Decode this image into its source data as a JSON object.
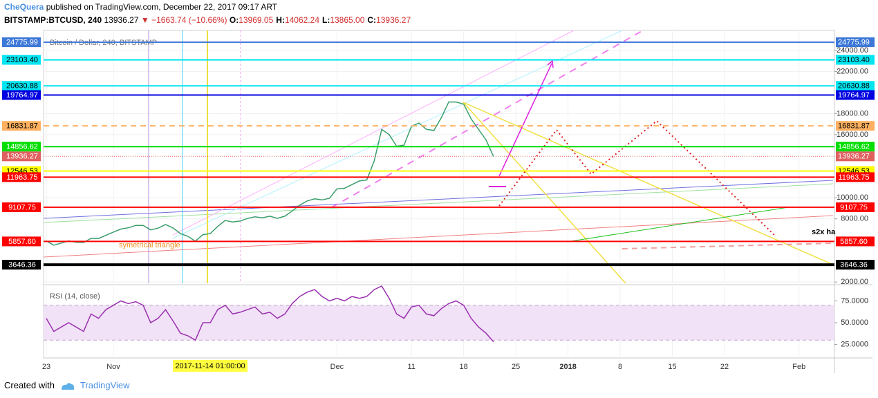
{
  "header": {
    "author": "CheQuera",
    "published": "published on TradingView.com, December 22, 2017 09:17 ART",
    "symbol": "BITSTAMP:BTCUSD, 240",
    "last": "13936.27",
    "change": "▼ −1663.74 (−10.66%)",
    "ohlc": [
      {
        "key": "O:",
        "val": "13969.05"
      },
      {
        "key": "H:",
        "val": "14062.24"
      },
      {
        "key": "L:",
        "val": "13865.00"
      },
      {
        "key": "C:",
        "val": "13936.27"
      }
    ]
  },
  "chart_data": [
    {
      "type": "line",
      "title": "Bitcoin / Dollar, 240, BITSTAMP",
      "color": "#3a9d6a",
      "categories": [
        "23",
        null,
        null,
        null,
        null,
        null,
        null,
        null,
        null,
        "Nov",
        null,
        null,
        null,
        null,
        null,
        null,
        null,
        null,
        null,
        null,
        null,
        null,
        null,
        null,
        null,
        null,
        null,
        null,
        null,
        null,
        null,
        null,
        null,
        null,
        null,
        null,
        null,
        null,
        null,
        "Dec",
        null,
        null,
        null,
        null,
        null,
        null,
        null,
        null,
        null,
        "11",
        null,
        null,
        null,
        null,
        null,
        null,
        "18",
        null,
        null,
        null,
        null,
        null,
        null,
        "25",
        null,
        null,
        null,
        null,
        null,
        null,
        "2018",
        null,
        null,
        null,
        null,
        null,
        null,
        "8",
        null,
        null,
        null,
        null,
        null,
        null,
        "15",
        null,
        null,
        null,
        null,
        null,
        null,
        "22",
        null,
        null,
        null,
        null,
        null,
        null,
        null,
        null,
        null,
        "Feb",
        null,
        null,
        null,
        null,
        null,
        null,
        null,
        null,
        null
      ],
      "values": [
        5900,
        5500,
        5700,
        5900,
        5780,
        5750,
        6150,
        6130,
        6450,
        6740,
        7030,
        7150,
        7380,
        7380,
        6950,
        7120,
        7460,
        7140,
        6600,
        6340,
        5880,
        6500,
        6600,
        7280,
        7850,
        7700,
        7790,
        8040,
        8200,
        8100,
        8250,
        8050,
        8250,
        8750,
        9300,
        9700,
        9900,
        9800,
        9950,
        10850,
        10900,
        11250,
        11600,
        11700,
        13500,
        16500,
        16000,
        14900,
        15000,
        16800,
        17100,
        16500,
        16400,
        17600,
        19100,
        19100,
        18900,
        17500,
        16500,
        15500,
        13936.27,
        null,
        null,
        null,
        null,
        null,
        null,
        null,
        null,
        null,
        null,
        null,
        null,
        null,
        null,
        null,
        null,
        null,
        null,
        null,
        null,
        null,
        null,
        null,
        null,
        null,
        null,
        null,
        null,
        null,
        null,
        null,
        null,
        null,
        null,
        null,
        null,
        null,
        null,
        null,
        null,
        null,
        null,
        null,
        null,
        null,
        null,
        null,
        null,
        null,
        null
      ],
      "ylim": [
        1880,
        25900
      ],
      "yticks": [
        {
          "value": 2000,
          "label": "2000.00"
        },
        {
          "value": 8000,
          "label": "8000.00"
        },
        {
          "value": 10000,
          "label": "10000.00"
        },
        {
          "value": 16000,
          "label": "16000.00"
        },
        {
          "value": 18000,
          "label": "18000.00"
        },
        {
          "value": 22000,
          "label": "22000.00"
        },
        {
          "value": 24000,
          "label": "24000.00"
        }
      ],
      "grid": true,
      "levels": [
        {
          "value": 24775.99,
          "color": "#3d78d8"
        },
        {
          "value": 23103.4,
          "label": "23103.40",
          "color": "#00e5f0"
        },
        {
          "value": 20630.88,
          "color": "#00e5f0"
        },
        {
          "value": 19764.97,
          "color": "#0000e0"
        },
        {
          "value": 16831.87,
          "color": "#ffb060",
          "style": "dashed"
        },
        {
          "value": 14856.62,
          "color": "#00dd00"
        },
        {
          "value": 13936.27,
          "color": "#e06060",
          "style": "dotted"
        },
        {
          "value": 12546.53,
          "color": "#ffff00"
        },
        {
          "value": 11963.75,
          "color": "#ff0000"
        },
        {
          "value": 9107.75,
          "color": "#ff0000"
        },
        {
          "value": 5857.6,
          "label": "5857.60",
          "color": "#ff0000"
        },
        {
          "value": 3646.36,
          "color": "#000000"
        }
      ],
      "annotations": [
        "s2x ha",
        "symetrical triangle"
      ],
      "crosshair_label": "2017-11-14 01:00:00"
    },
    {
      "type": "line",
      "title": "RSI (14, close)",
      "color": "#9b30b0",
      "values": [
        55,
        40,
        45,
        50,
        45,
        40,
        60,
        55,
        65,
        70,
        75,
        72,
        74,
        70,
        50,
        55,
        65,
        52,
        38,
        35,
        30,
        50,
        50,
        65,
        70,
        60,
        62,
        65,
        68,
        60,
        62,
        55,
        60,
        72,
        80,
        85,
        88,
        80,
        75,
        78,
        75,
        80,
        78,
        80,
        88,
        92,
        78,
        60,
        55,
        68,
        70,
        60,
        58,
        66,
        72,
        75,
        70,
        55,
        45,
        38,
        28,
        null,
        null,
        null,
        null,
        null,
        null,
        null,
        null,
        null,
        null,
        null,
        null,
        null,
        null,
        null,
        null,
        null,
        null,
        null,
        null,
        null,
        null,
        null,
        null,
        null,
        null,
        null,
        null,
        null,
        null,
        null,
        null,
        null,
        null,
        null,
        null,
        null,
        null,
        null,
        null,
        null,
        null,
        null,
        null,
        null,
        null,
        null,
        null,
        null,
        null
      ],
      "ylim": [
        12,
        92
      ],
      "yticks": [
        {
          "value": 25,
          "label": "25.0000"
        },
        {
          "value": 50,
          "label": "50.0000"
        },
        {
          "value": 75,
          "label": "75.0000"
        }
      ],
      "band": [
        30,
        70
      ],
      "band_color": "#f1e2f7"
    }
  ],
  "footer": {
    "created_with": "Created with",
    "brand": "TradingView"
  }
}
